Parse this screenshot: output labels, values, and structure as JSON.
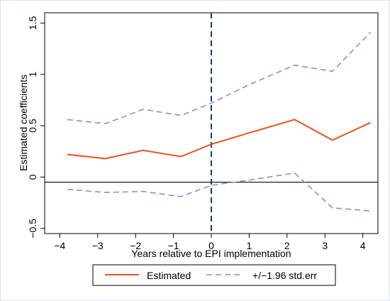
{
  "chart_data": {
    "type": "line",
    "xlabel": "Years relative to EPI implementation",
    "ylabel": "Estimated coefficients",
    "xlim": [
      -4.4,
      4.4
    ],
    "ylim": [
      -0.55,
      1.6
    ],
    "xticks": [
      -4,
      -3,
      -2,
      -1,
      0,
      1,
      2,
      3,
      4
    ],
    "xtick_labels": [
      "−4",
      "−3",
      "−2",
      "−1",
      "0",
      "1",
      "2",
      "3",
      "4"
    ],
    "yticks": [
      -0.5,
      0,
      0.5,
      1,
      1.5
    ],
    "ytick_labels": [
      "−0.5",
      "0",
      "0.5",
      "1",
      "1.5"
    ],
    "zero_line": -0.05,
    "event_line_x": 0,
    "grid": false,
    "legend_position": "bottom",
    "series": [
      {
        "name": "Estimated",
        "color": "#e8501e",
        "style": "solid",
        "x": [
          -3.8,
          -2.8,
          -1.8,
          -0.8,
          0,
          1,
          2.2,
          3.2,
          4.2
        ],
        "y": [
          0.22,
          0.18,
          0.26,
          0.2,
          0.32,
          0.43,
          0.56,
          0.36,
          0.53
        ]
      },
      {
        "name": "+/−1.96 std.err",
        "color": "#8c8cd6",
        "style": "dashed",
        "x": [
          -3.8,
          -2.8,
          -1.8,
          -0.8,
          0,
          1,
          2.2,
          3.2,
          4.2
        ],
        "y": [
          0.56,
          0.52,
          0.66,
          0.6,
          0.72,
          0.9,
          1.09,
          1.03,
          1.41
        ]
      },
      {
        "name": "",
        "color": "#8c8cd6",
        "style": "dashed",
        "x": [
          -3.8,
          -2.8,
          -1.8,
          -0.8,
          0,
          1,
          2.2,
          3.2,
          4.2
        ],
        "y": [
          -0.12,
          -0.15,
          -0.14,
          -0.19,
          -0.08,
          -0.03,
          0.04,
          -0.3,
          -0.33
        ]
      }
    ]
  }
}
